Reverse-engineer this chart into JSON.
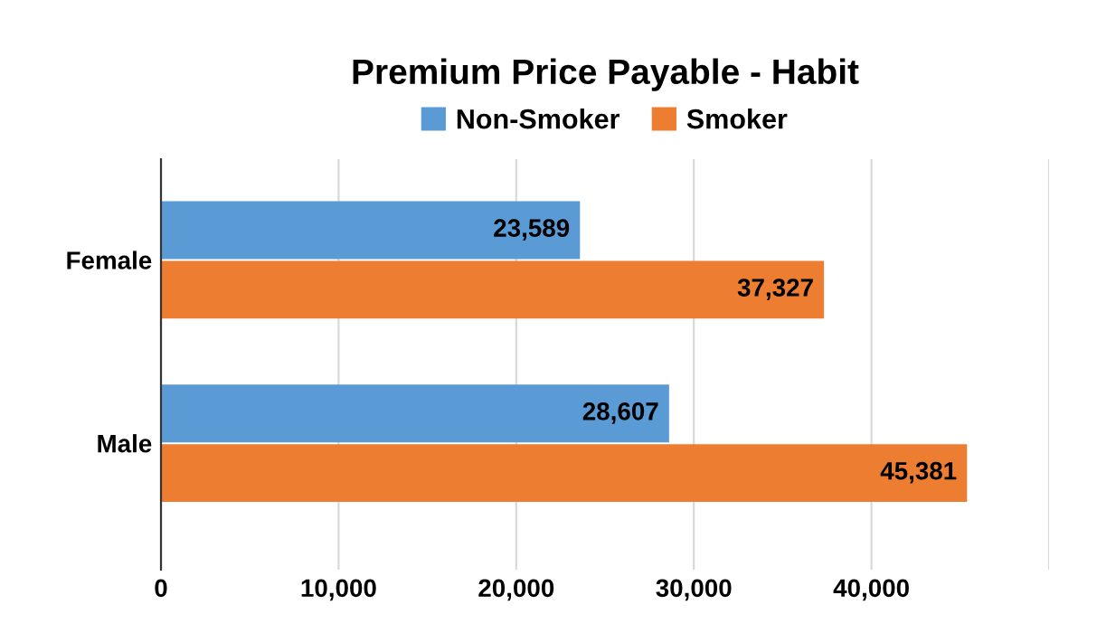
{
  "chart_data": {
    "type": "bar",
    "orientation": "horizontal",
    "title": "Premium Price Payable - Habit",
    "categories": [
      "Female",
      "Male"
    ],
    "series": [
      {
        "name": "Non-Smoker",
        "color": "#5b9bd5",
        "values": [
          23589,
          28607
        ],
        "value_labels": [
          "23,589",
          "28,607"
        ]
      },
      {
        "name": "Smoker",
        "color": "#ed7d31",
        "values": [
          37327,
          45381
        ],
        "value_labels": [
          "37,327",
          "45,381"
        ]
      }
    ],
    "xlim": [
      0,
      50000
    ],
    "xticks": [
      {
        "value": 0,
        "label": "0"
      },
      {
        "value": 10000,
        "label": "10,000"
      },
      {
        "value": 20000,
        "label": "20,000"
      },
      {
        "value": 30000,
        "label": "30,000"
      },
      {
        "value": 40000,
        "label": "40,000"
      },
      {
        "value": 50000,
        "label": null
      }
    ],
    "grid": "x",
    "legend": "top"
  }
}
